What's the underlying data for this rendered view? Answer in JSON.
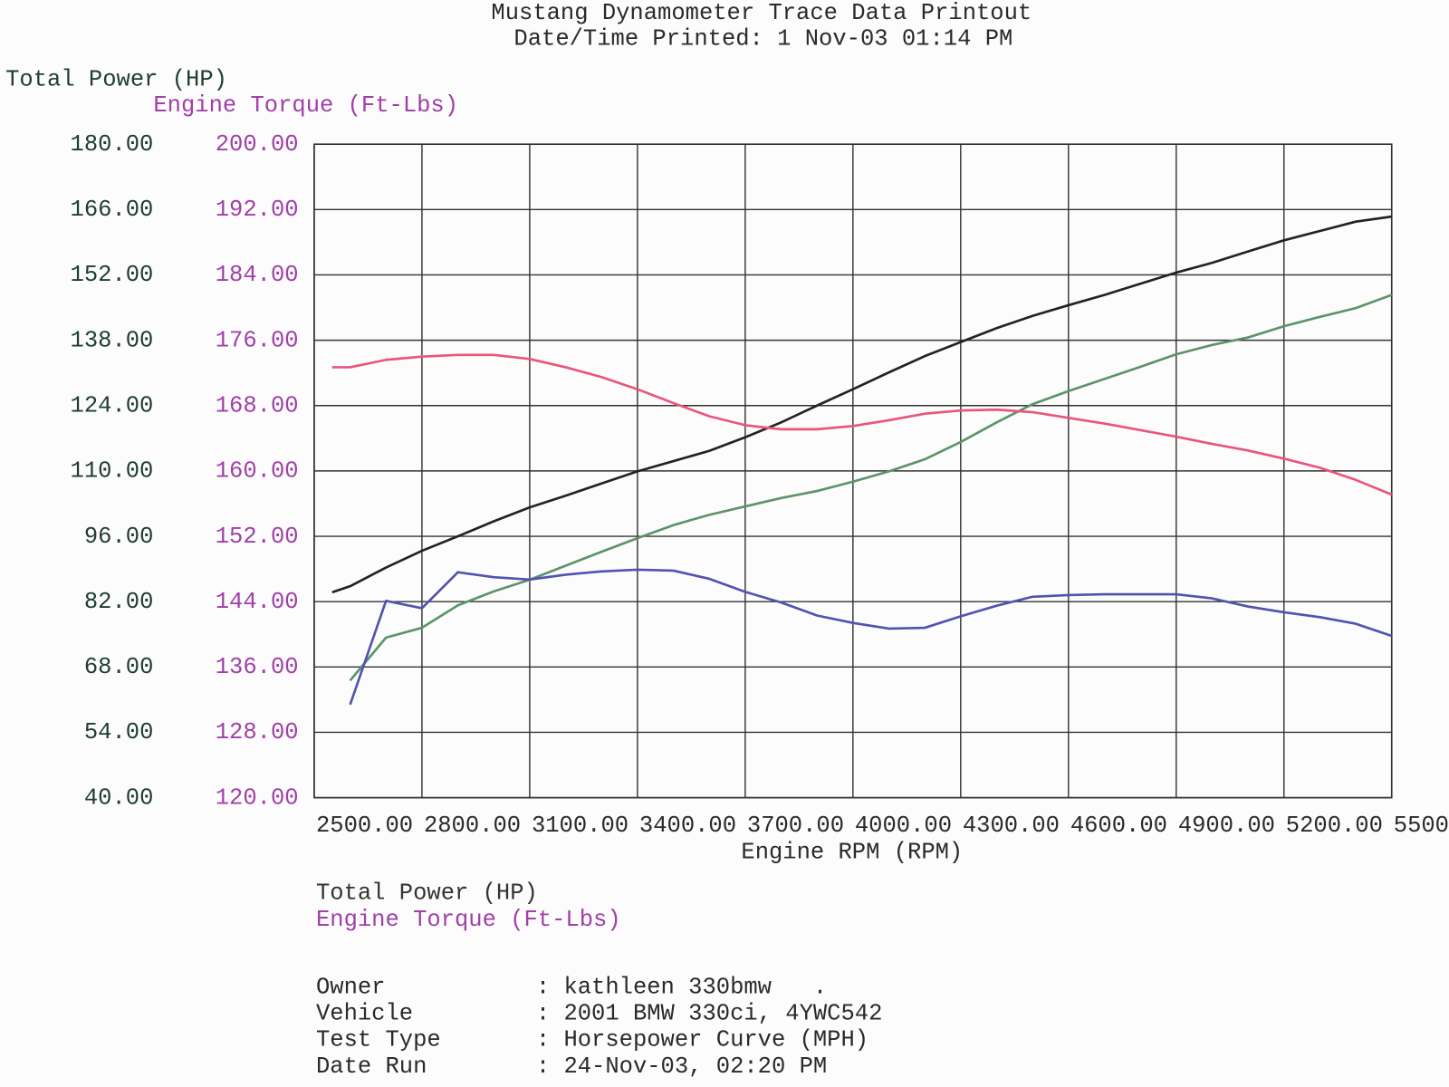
{
  "chart_data": {
    "type": "line",
    "title": "Mustang Dynamometer Trace Data Printout",
    "subtitle": "Date/Time Printed: 1  Nov-03 01:14 PM",
    "y_label": "Total Power (HP)",
    "y2_label": "Engine Torque (Ft-Lbs)",
    "x_label": "Engine RPM (RPM)",
    "grid": true,
    "x": [
      2550,
      2600,
      2700,
      2800,
      2900,
      3000,
      3100,
      3200,
      3300,
      3400,
      3500,
      3600,
      3700,
      3800,
      3900,
      4000,
      4100,
      4200,
      4300,
      4400,
      4500,
      4600,
      4700,
      4800,
      4900,
      5000,
      5100,
      5200,
      5300,
      5400,
      5500
    ],
    "xlim": [
      2500,
      5500
    ],
    "xticks": [
      {
        "value": 2500,
        "label": "2500.00"
      },
      {
        "value": 2800,
        "label": "2800.00"
      },
      {
        "value": 3100,
        "label": "3100.00"
      },
      {
        "value": 3400,
        "label": "3400.00"
      },
      {
        "value": 3700,
        "label": "3700.00"
      },
      {
        "value": 4000,
        "label": "4000.00"
      },
      {
        "value": 4300,
        "label": "4300.00"
      },
      {
        "value": 4600,
        "label": "4600.00"
      },
      {
        "value": 4900,
        "label": "4900.00"
      },
      {
        "value": 5200,
        "label": "5200.00"
      },
      5500
    ],
    "ylim": [
      40,
      180
    ],
    "yticks": [
      {
        "value": 40,
        "label": "40.00"
      },
      {
        "value": 54,
        "label": "54.00"
      },
      {
        "value": 68,
        "label": "68.00"
      },
      {
        "value": 82,
        "label": "82.00"
      },
      {
        "value": 96,
        "label": "96.00"
      },
      {
        "value": 110,
        "label": "110.00"
      },
      {
        "value": 124,
        "label": "124.00"
      },
      {
        "value": 138,
        "label": "138.00"
      },
      {
        "value": 152,
        "label": "152.00"
      },
      {
        "value": 166,
        "label": "166.00"
      },
      {
        "value": 180,
        "label": "180.00"
      }
    ],
    "y2lim": [
      120,
      200
    ],
    "y2ticks": [
      {
        "value": 120,
        "label": "120.00"
      },
      {
        "value": 128,
        "label": "128.00"
      },
      {
        "value": 136,
        "label": "136.00"
      },
      {
        "value": 144,
        "label": "144.00"
      },
      {
        "value": 152,
        "label": "152.00"
      },
      {
        "value": 160,
        "label": "160.00"
      },
      {
        "value": 168,
        "label": "168.00"
      },
      {
        "value": 176,
        "label": "176.00"
      },
      {
        "value": 184,
        "label": "184.00"
      },
      {
        "value": 192,
        "label": "192.00"
      },
      {
        "value": 200,
        "label": "200.00"
      }
    ],
    "series": [
      {
        "color": "#222222",
        "axis": "y",
        "values": [
          84.0,
          85.3,
          89.3,
          92.9,
          96.0,
          99.2,
          102.2,
          104.7,
          107.3,
          109.9,
          112.1,
          114.3,
          117.2,
          120.4,
          124.0,
          127.5,
          131.1,
          134.6,
          137.6,
          140.6,
          143.2,
          145.5,
          147.7,
          150.1,
          152.5,
          154.6,
          157.0,
          159.4,
          161.4,
          163.4,
          164.5
        ]
      },
      {
        "color": "#5a9468",
        "axis": "y",
        "values": [
          null,
          65.1,
          74.3,
          76.4,
          81.2,
          84.2,
          86.7,
          89.7,
          92.7,
          95.6,
          98.4,
          100.6,
          102.4,
          104.2,
          105.7,
          107.7,
          109.9,
          112.5,
          116.2,
          120.4,
          124.3,
          127.1,
          129.7,
          132.3,
          135.0,
          137.0,
          138.6,
          141.0,
          143.0,
          144.9,
          147.7
        ]
      },
      {
        "color": "#e8567c",
        "axis": "y2",
        "values": [
          172.7,
          172.7,
          173.6,
          174.0,
          174.2,
          174.2,
          173.7,
          172.7,
          171.5,
          170.0,
          168.3,
          166.7,
          165.6,
          165.1,
          165.1,
          165.5,
          166.2,
          167.0,
          167.4,
          167.5,
          167.2,
          166.5,
          165.8,
          165.0,
          164.2,
          163.3,
          162.5,
          161.5,
          160.4,
          158.9,
          157.1
        ]
      },
      {
        "color": "#5252b0",
        "axis": "y2",
        "values": [
          null,
          131.4,
          144.1,
          143.2,
          147.6,
          147.0,
          146.7,
          147.3,
          147.7,
          147.9,
          147.8,
          146.8,
          145.2,
          143.9,
          142.3,
          141.4,
          140.7,
          140.8,
          142.2,
          143.5,
          144.6,
          144.8,
          144.9,
          144.9,
          144.9,
          144.4,
          143.4,
          142.7,
          142.1,
          141.3,
          139.8
        ]
      }
    ],
    "legend": [
      {
        "name": "Total Power (HP)",
        "color": "#333333"
      },
      {
        "name": "Engine Torque (Ft-Lbs)",
        "color": "#a040a8"
      }
    ]
  },
  "info": {
    "rows": [
      [
        "Owner",
        ":",
        "kathleen 330bmw   ."
      ],
      [
        "Vehicle",
        ":",
        "2001 BMW 330ci, 4YWC542"
      ],
      [
        "Test Type",
        ":",
        "Horsepower Curve (MPH)"
      ],
      [
        "Date Run",
        ":",
        "24-Nov-03, 02:20 PM"
      ]
    ]
  }
}
